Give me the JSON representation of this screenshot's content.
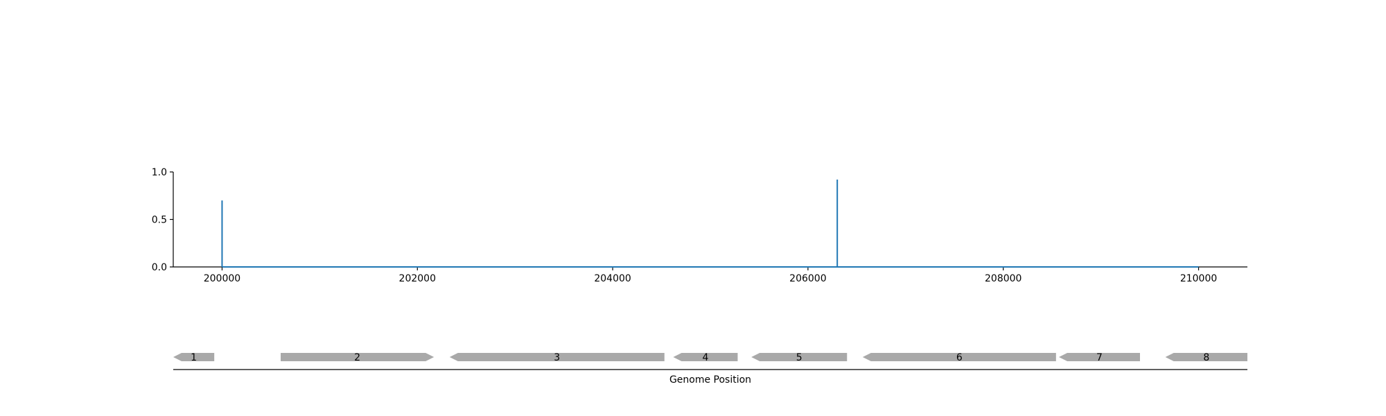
{
  "chart_data": [
    {
      "type": "line",
      "x_domain": [
        199500,
        210500
      ],
      "ylim": [
        0,
        1.0
      ],
      "yticks": [
        {
          "value": 0.0,
          "label": "0.0"
        },
        {
          "value": 0.5,
          "label": "0.5"
        },
        {
          "value": 1.0,
          "label": "1.0"
        }
      ],
      "xticks": [
        {
          "value": 200000,
          "label": "200000"
        },
        {
          "value": 202000,
          "label": "202000"
        },
        {
          "value": 204000,
          "label": "204000"
        },
        {
          "value": 206000,
          "label": "206000"
        },
        {
          "value": 208000,
          "label": "208000"
        },
        {
          "value": 210000,
          "label": "210000"
        }
      ],
      "baseline": {
        "x_start": 200000,
        "x_end": 210000,
        "y": 0
      },
      "peaks": [
        {
          "x": 200000,
          "y": 0.7
        },
        {
          "x": 206300,
          "y": 0.92
        }
      ],
      "color": "#1f77b4",
      "grid": false
    },
    {
      "type": "gene-map",
      "xlabel": "Genome Position",
      "color": "#a9a9a9",
      "genes": [
        {
          "label": "1",
          "start": 199500,
          "end": 199920,
          "strand": "-"
        },
        {
          "label": "2",
          "start": 200600,
          "end": 202170,
          "strand": "+"
        },
        {
          "label": "3",
          "start": 202330,
          "end": 204530,
          "strand": "-"
        },
        {
          "label": "4",
          "start": 204620,
          "end": 205280,
          "strand": "-"
        },
        {
          "label": "5",
          "start": 205420,
          "end": 206400,
          "strand": "-"
        },
        {
          "label": "6",
          "start": 206560,
          "end": 208540,
          "strand": "-"
        },
        {
          "label": "7",
          "start": 208570,
          "end": 209400,
          "strand": "-"
        },
        {
          "label": "8",
          "start": 209660,
          "end": 210500,
          "strand": "-"
        }
      ]
    }
  ]
}
